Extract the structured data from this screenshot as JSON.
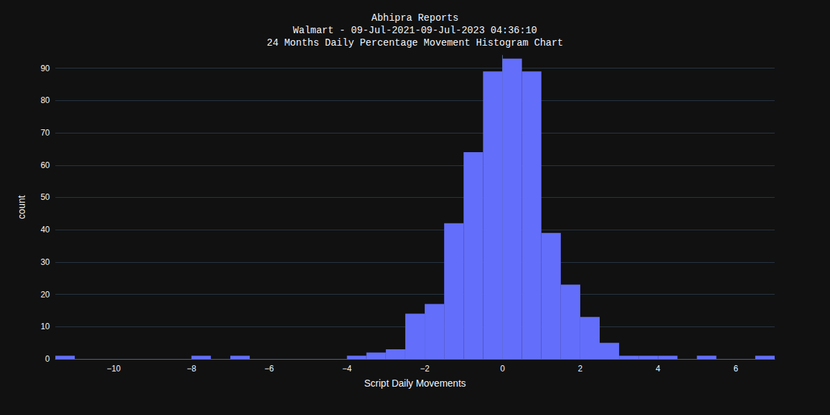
{
  "chart_data": {
    "type": "histogram",
    "title": "Abhipra Reports\nWalmart - 09-Jul-2021-09-Jul-2023 04:36:10\n24 Months Daily Percentage Movement Histogram Chart",
    "x_label": "Script Daily Movements",
    "y_label": "count",
    "bins": [
      -11.5,
      -11,
      -10.5,
      -10,
      -9.5,
      -9,
      -8.5,
      -8,
      -7.5,
      -7,
      -6.5,
      -6,
      -5.5,
      -5,
      -4.5,
      -4,
      -3.5,
      -3,
      -2.5,
      -2,
      -1.5,
      -1,
      -0.5,
      0,
      0.5,
      1,
      1.5,
      2,
      2.5,
      3,
      3.5,
      4,
      4.5,
      5,
      5.5,
      6,
      6.5,
      7
    ],
    "values": [
      1,
      0,
      0,
      0,
      0,
      0,
      0,
      1,
      0,
      1,
      0,
      0,
      0,
      0,
      0,
      1,
      2,
      3,
      14,
      17,
      42,
      64,
      89,
      93,
      89,
      39,
      23,
      13,
      5,
      1,
      1,
      1,
      0,
      1,
      0,
      0,
      1
    ],
    "color": "#636efa",
    "xlim": [
      -11.5,
      7
    ],
    "xticks": [
      {
        "value": -10,
        "label": "−10"
      },
      {
        "value": -8,
        "label": "−8"
      },
      {
        "value": -6,
        "label": "−6"
      },
      {
        "value": -4,
        "label": "−4"
      },
      {
        "value": -2,
        "label": "−2"
      },
      0,
      2,
      4,
      6
    ],
    "ylim": [
      0,
      94
    ],
    "yticks": [
      0,
      10,
      20,
      30,
      40,
      50,
      60,
      70,
      80,
      90
    ],
    "grid": true
  }
}
